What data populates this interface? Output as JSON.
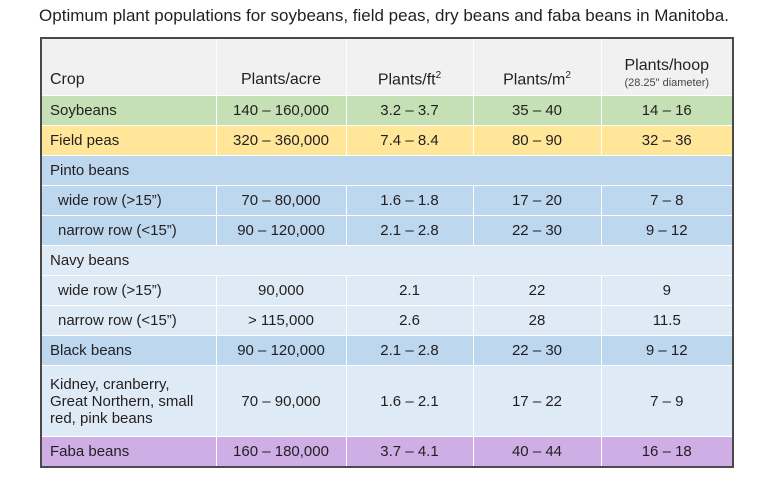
{
  "title": "Optimum plant populations for soybeans, field peas, dry beans and faba beans in Manitoba.",
  "headers": {
    "crop": "Crop",
    "acre": "Plants/acre",
    "ft2": "Plants/ft",
    "ft2_sup": "2",
    "m2": "Plants/m",
    "m2_sup": "2",
    "hoop": "Plants/hoop",
    "hoop_note": "(28.25\" diameter)"
  },
  "colors": {
    "header": "#f1f1f1",
    "soybeans": "#c5e0b4",
    "field_peas": "#ffe699",
    "pinto_black": "#bdd7ee",
    "navy_kidney": "#deebf7",
    "faba": "#cfaee6"
  },
  "rows": [
    {
      "crop": "Soybeans",
      "acre": "140 – 160,000",
      "ft2": "3.2 – 3.7",
      "m2": "35 – 40",
      "hoop": "14 – 16"
    },
    {
      "crop": "Field peas",
      "acre": "320 – 360,000",
      "ft2": "7.4 – 8.4",
      "m2": "80 – 90",
      "hoop": "32 – 36"
    },
    {
      "crop": "Pinto beans"
    },
    {
      "crop": "wide row (>15”)",
      "acre": "70 – 80,000",
      "ft2": "1.6 – 1.8",
      "m2": "17 – 20",
      "hoop": "7 – 8"
    },
    {
      "crop": "narrow row (<15”)",
      "acre": "90 – 120,000",
      "ft2": "2.1 – 2.8",
      "m2": "22 – 30",
      "hoop": "9 – 12"
    },
    {
      "crop": "Navy beans"
    },
    {
      "crop": "wide row (>15”)",
      "acre": "90,000",
      "ft2": "2.1",
      "m2": "22",
      "hoop": "9"
    },
    {
      "crop": "narrow row (<15”)",
      "acre": "> 115,000",
      "ft2": "2.6",
      "m2": "28",
      "hoop": "11.5"
    },
    {
      "crop": "Black beans",
      "acre": "90 – 120,000",
      "ft2": "2.1 – 2.8",
      "m2": "22 – 30",
      "hoop": "9 – 12"
    },
    {
      "crop": "Kidney, cranberry, Great Northern, small red, pink beans",
      "acre": "70 – 90,000",
      "ft2": "1.6 – 2.1",
      "m2": "17 – 22",
      "hoop": "7 – 9"
    },
    {
      "crop": "Faba beans",
      "acre": "160 – 180,000",
      "ft2": "3.7 – 4.1",
      "m2": "40 – 44",
      "hoop": "16 – 18"
    }
  ]
}
